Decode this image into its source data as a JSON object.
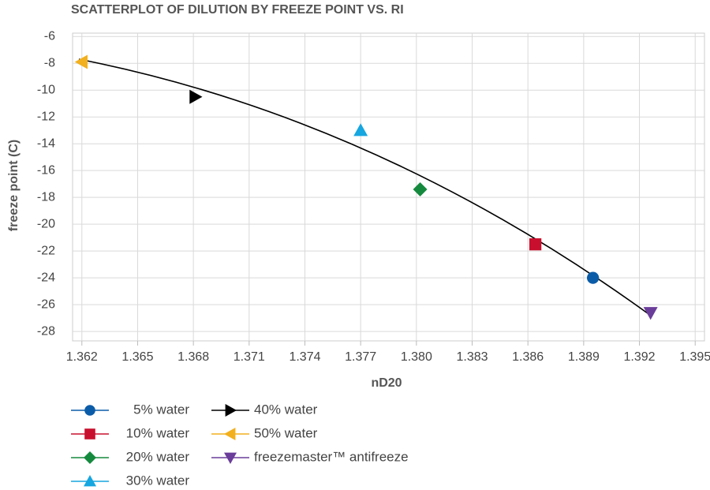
{
  "chart_data": {
    "type": "scatter",
    "title": "SCATTERPLOT OF DILUTION BY FREEZE POINT VS. RI",
    "x_label": "nD20",
    "y_label": "freeze point (C)",
    "xlim": [
      1.3615,
      1.3955
    ],
    "ylim": [
      -28.7,
      -5.75
    ],
    "xticks": [
      1.362,
      1.365,
      1.368,
      1.371,
      1.374,
      1.377,
      {
        "value": 1.38,
        "label": "1.380"
      },
      1.383,
      1.386,
      1.389,
      1.392,
      1.395
    ],
    "yticks": [
      -6,
      -8,
      -10,
      -12,
      -14,
      -16,
      -18,
      -20,
      -22,
      -24,
      -26,
      -28
    ],
    "grid": true,
    "series": [
      {
        "name": "5% water",
        "color": "#0b5ca8",
        "marker": "circle",
        "x": [
          1.3895
        ],
        "values": [
          -24.0
        ]
      },
      {
        "name": "10% water",
        "color": "#c8102e",
        "marker": "square",
        "x": [
          1.3864
        ],
        "values": [
          -21.5
        ]
      },
      {
        "name": "20% water",
        "color": "#158a3e",
        "marker": "diamond",
        "x": [
          1.3802
        ],
        "values": [
          -17.4
        ]
      },
      {
        "name": "30% water",
        "color": "#16a6e0",
        "marker": "triangle-up",
        "x": [
          1.377
        ],
        "values": [
          -13.0
        ]
      },
      {
        "name": "40% water",
        "color": "#000000",
        "marker": "triangle-right",
        "x": [
          1.3681
        ],
        "values": [
          -10.5
        ]
      },
      {
        "name": "50% water",
        "color": "#f2b01e",
        "marker": "triangle-left",
        "x": [
          1.362
        ],
        "values": [
          -7.9
        ]
      },
      {
        "name": "freezemaster™ antifreeze",
        "color": "#6a3d9a",
        "marker": "triangle-down",
        "x": [
          1.3926
        ],
        "values": [
          -26.6
        ]
      }
    ]
  }
}
